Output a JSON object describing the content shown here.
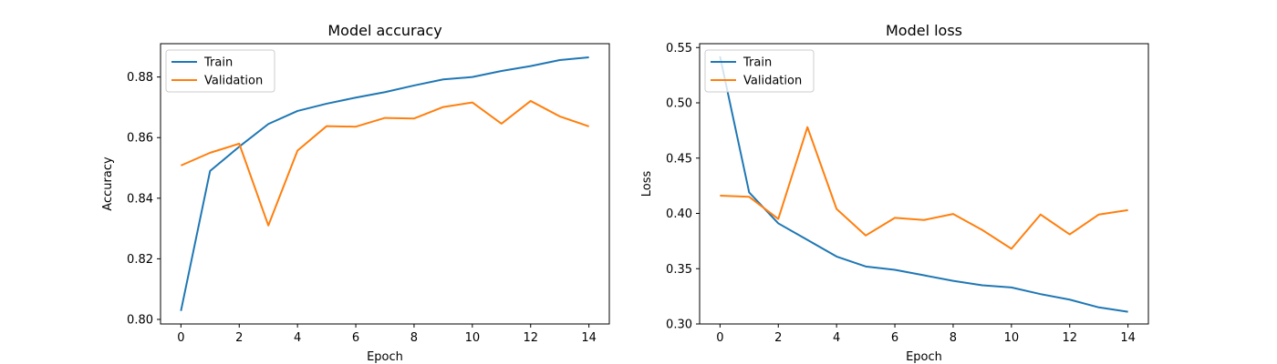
{
  "chart_data": [
    {
      "type": "line",
      "title": "Model accuracy",
      "xlabel": "Epoch",
      "ylabel": "Accuracy",
      "x": [
        0,
        1,
        2,
        3,
        4,
        5,
        6,
        7,
        8,
        9,
        10,
        11,
        12,
        13,
        14
      ],
      "xlim": [
        -0.7,
        14.7
      ],
      "ylim": [
        0.7985,
        0.891
      ],
      "xticks": [
        0,
        2,
        4,
        6,
        8,
        10,
        12,
        14
      ],
      "xtick_labels": [
        "0",
        "2",
        "4",
        "6",
        "8",
        "10",
        "12",
        "14"
      ],
      "yticks": [
        0.8,
        0.82,
        0.84,
        0.86,
        0.88
      ],
      "ytick_labels": [
        "0.80",
        "0.82",
        "0.84",
        "0.86",
        "0.88"
      ],
      "legend_position": "upper-left",
      "grid": false,
      "series": [
        {
          "name": "Train",
          "color": "#1f77b4",
          "values": [
            0.8028,
            0.849,
            0.857,
            0.8645,
            0.8688,
            0.8712,
            0.8732,
            0.875,
            0.8772,
            0.8792,
            0.88,
            0.882,
            0.8836,
            0.8856,
            0.8865
          ]
        },
        {
          "name": "Validation",
          "color": "#ff7f0e",
          "values": [
            0.8508,
            0.855,
            0.858,
            0.831,
            0.8557,
            0.8638,
            0.8636,
            0.8665,
            0.8663,
            0.8701,
            0.8716,
            0.8646,
            0.8721,
            0.867,
            0.8637
          ]
        }
      ]
    },
    {
      "type": "line",
      "title": "Model loss",
      "xlabel": "Epoch",
      "ylabel": "Loss",
      "x": [
        0,
        1,
        2,
        3,
        4,
        5,
        6,
        7,
        8,
        9,
        10,
        11,
        12,
        13,
        14
      ],
      "xlim": [
        -0.7,
        14.7
      ],
      "ylim": [
        0.3,
        0.5535
      ],
      "xticks": [
        0,
        2,
        4,
        6,
        8,
        10,
        12,
        14
      ],
      "xtick_labels": [
        "0",
        "2",
        "4",
        "6",
        "8",
        "10",
        "12",
        "14"
      ],
      "yticks": [
        0.3,
        0.35,
        0.4,
        0.45,
        0.5,
        0.55
      ],
      "ytick_labels": [
        "0.30",
        "0.35",
        "0.40",
        "0.45",
        "0.50",
        "0.55"
      ],
      "legend_position": "upper-left",
      "grid": false,
      "series": [
        {
          "name": "Train",
          "color": "#1f77b4",
          "values": [
            0.542,
            0.419,
            0.391,
            0.376,
            0.361,
            0.352,
            0.349,
            0.344,
            0.339,
            0.335,
            0.333,
            0.327,
            0.322,
            0.315,
            0.311
          ]
        },
        {
          "name": "Validation",
          "color": "#ff7f0e",
          "values": [
            0.416,
            0.415,
            0.395,
            0.478,
            0.404,
            0.38,
            0.396,
            0.394,
            0.3995,
            0.385,
            0.368,
            0.399,
            0.381,
            0.399,
            0.403
          ]
        }
      ]
    }
  ]
}
